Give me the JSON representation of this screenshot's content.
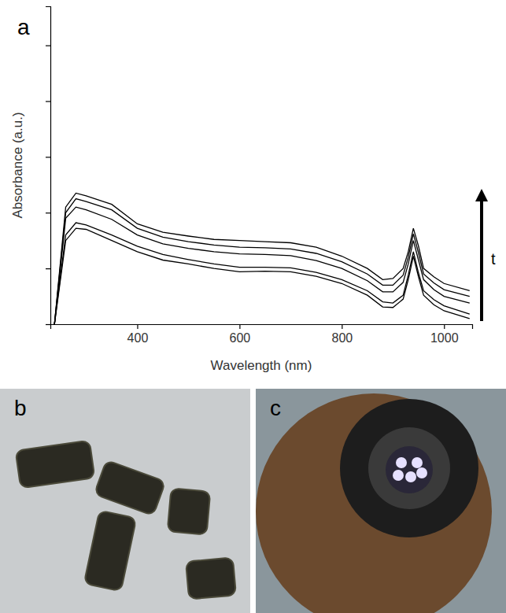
{
  "figure": {
    "panel_labels": [
      "a",
      "b",
      "c"
    ]
  },
  "chart_data": {
    "type": "line",
    "x_label": "Wavelength (nm)",
    "y_label": "Absorbance (a.u.)",
    "annotations": [
      {
        "text": "t"
      }
    ],
    "x": [
      238,
      260,
      280,
      300,
      350,
      400,
      450,
      500,
      550,
      600,
      650,
      700,
      750,
      800,
      850,
      880,
      900,
      920,
      930,
      940,
      950,
      960,
      980,
      1000,
      1050
    ],
    "series": [
      {
        "color": "#000000",
        "line_style": "solid",
        "values": [
          0,
          1.5,
          1.72,
          1.7,
          1.5,
          1.3,
          1.15,
          1.08,
          1.0,
          0.94,
          0.95,
          0.94,
          0.86,
          0.73,
          0.52,
          0.31,
          0.3,
          0.45,
          0.8,
          1.22,
          0.85,
          0.52,
          0.35,
          0.24,
          0.1
        ]
      },
      {
        "color": "#000000",
        "line_style": "solid",
        "values": [
          0,
          1.6,
          1.82,
          1.78,
          1.6,
          1.4,
          1.25,
          1.16,
          1.08,
          1.02,
          1.02,
          1.01,
          0.93,
          0.8,
          0.6,
          0.4,
          0.38,
          0.52,
          0.88,
          1.3,
          0.92,
          0.6,
          0.44,
          0.33,
          0.18
        ]
      },
      {
        "color": "#000000",
        "line_style": "solid",
        "values": [
          0,
          1.9,
          2.1,
          2.05,
          1.88,
          1.6,
          1.44,
          1.36,
          1.3,
          1.26,
          1.25,
          1.23,
          1.14,
          1.0,
          0.78,
          0.58,
          0.58,
          0.75,
          1.08,
          1.5,
          1.15,
          0.8,
          0.62,
          0.5,
          0.38
        ]
      },
      {
        "color": "#000000",
        "line_style": "solid",
        "values": [
          0,
          2.0,
          2.25,
          2.2,
          2.05,
          1.72,
          1.56,
          1.48,
          1.42,
          1.38,
          1.37,
          1.35,
          1.27,
          1.12,
          0.9,
          0.7,
          0.7,
          0.88,
          1.2,
          1.62,
          1.28,
          0.9,
          0.74,
          0.62,
          0.5
        ]
      },
      {
        "color": "#000000",
        "line_style": "solid",
        "values": [
          0,
          2.1,
          2.35,
          2.3,
          2.15,
          1.8,
          1.65,
          1.58,
          1.52,
          1.5,
          1.48,
          1.46,
          1.38,
          1.22,
          1.0,
          0.8,
          0.82,
          1.0,
          1.3,
          1.72,
          1.4,
          1.0,
          0.85,
          0.73,
          0.6
        ]
      }
    ],
    "xlim": [
      230,
      1055
    ],
    "xticks": [
      400,
      600,
      800,
      1000
    ],
    "ylim": [
      0,
      5.7
    ],
    "yticks": [
      0,
      1,
      2,
      3,
      4,
      5
    ],
    "tick_labels": "x",
    "grid": false
  }
}
